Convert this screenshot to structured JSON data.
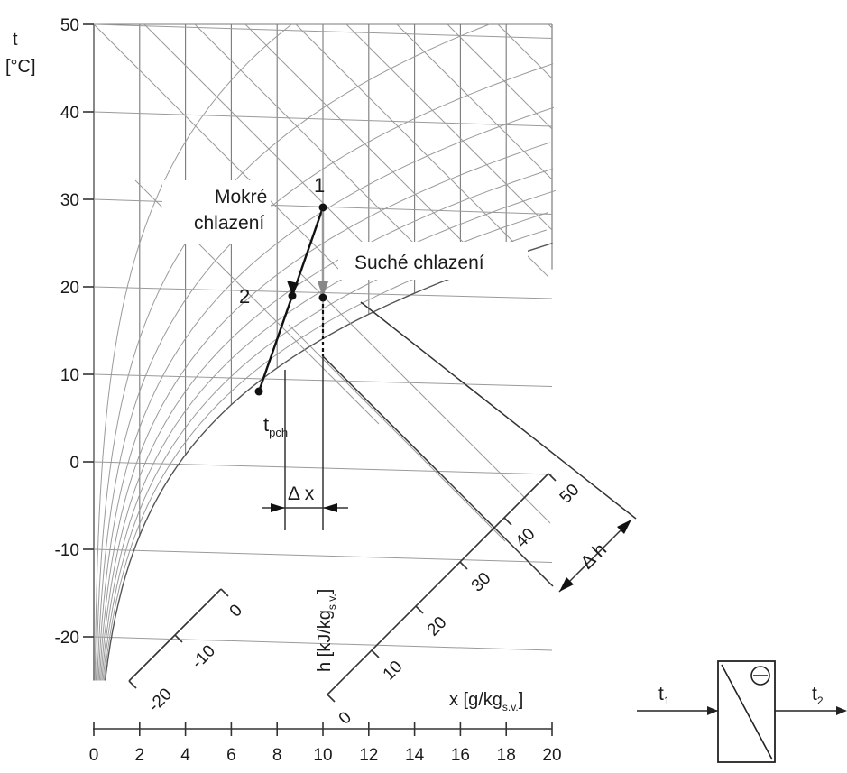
{
  "diagram": {
    "t_axis": {
      "label_line1": "t",
      "label_line2": "[°C]",
      "ticks": [
        "50",
        "40",
        "30",
        "20",
        "10",
        "0",
        "-10",
        "-20"
      ]
    },
    "x_axis": {
      "label": "x [g/kg",
      "label_sub": "s.v.",
      "label_close": "]",
      "ticks": [
        "0",
        "2",
        "4",
        "6",
        "8",
        "10",
        "12",
        "14",
        "16",
        "18",
        "20"
      ]
    },
    "h_axis": {
      "label": "h [kJ/kg",
      "label_sub": "s.v.",
      "label_close": "]",
      "ticks": [
        "0",
        "10",
        "20",
        "30",
        "40",
        "50"
      ]
    },
    "neg_h_axis": {
      "ticks": [
        "-20",
        "-10",
        "0"
      ]
    },
    "callouts": {
      "wet": [
        "Mokré",
        "chlazení"
      ],
      "dry": "Suché chlazení"
    },
    "points": {
      "p1": "1",
      "p2": "2",
      "dew": "t",
      "dew_sub": "pch"
    },
    "dimensions": {
      "dx": "Δ x",
      "dh": "Δ h"
    },
    "device": {
      "t_in": "t",
      "t_in_sub": "1",
      "t_out": "t",
      "t_out_sub": "2"
    }
  }
}
